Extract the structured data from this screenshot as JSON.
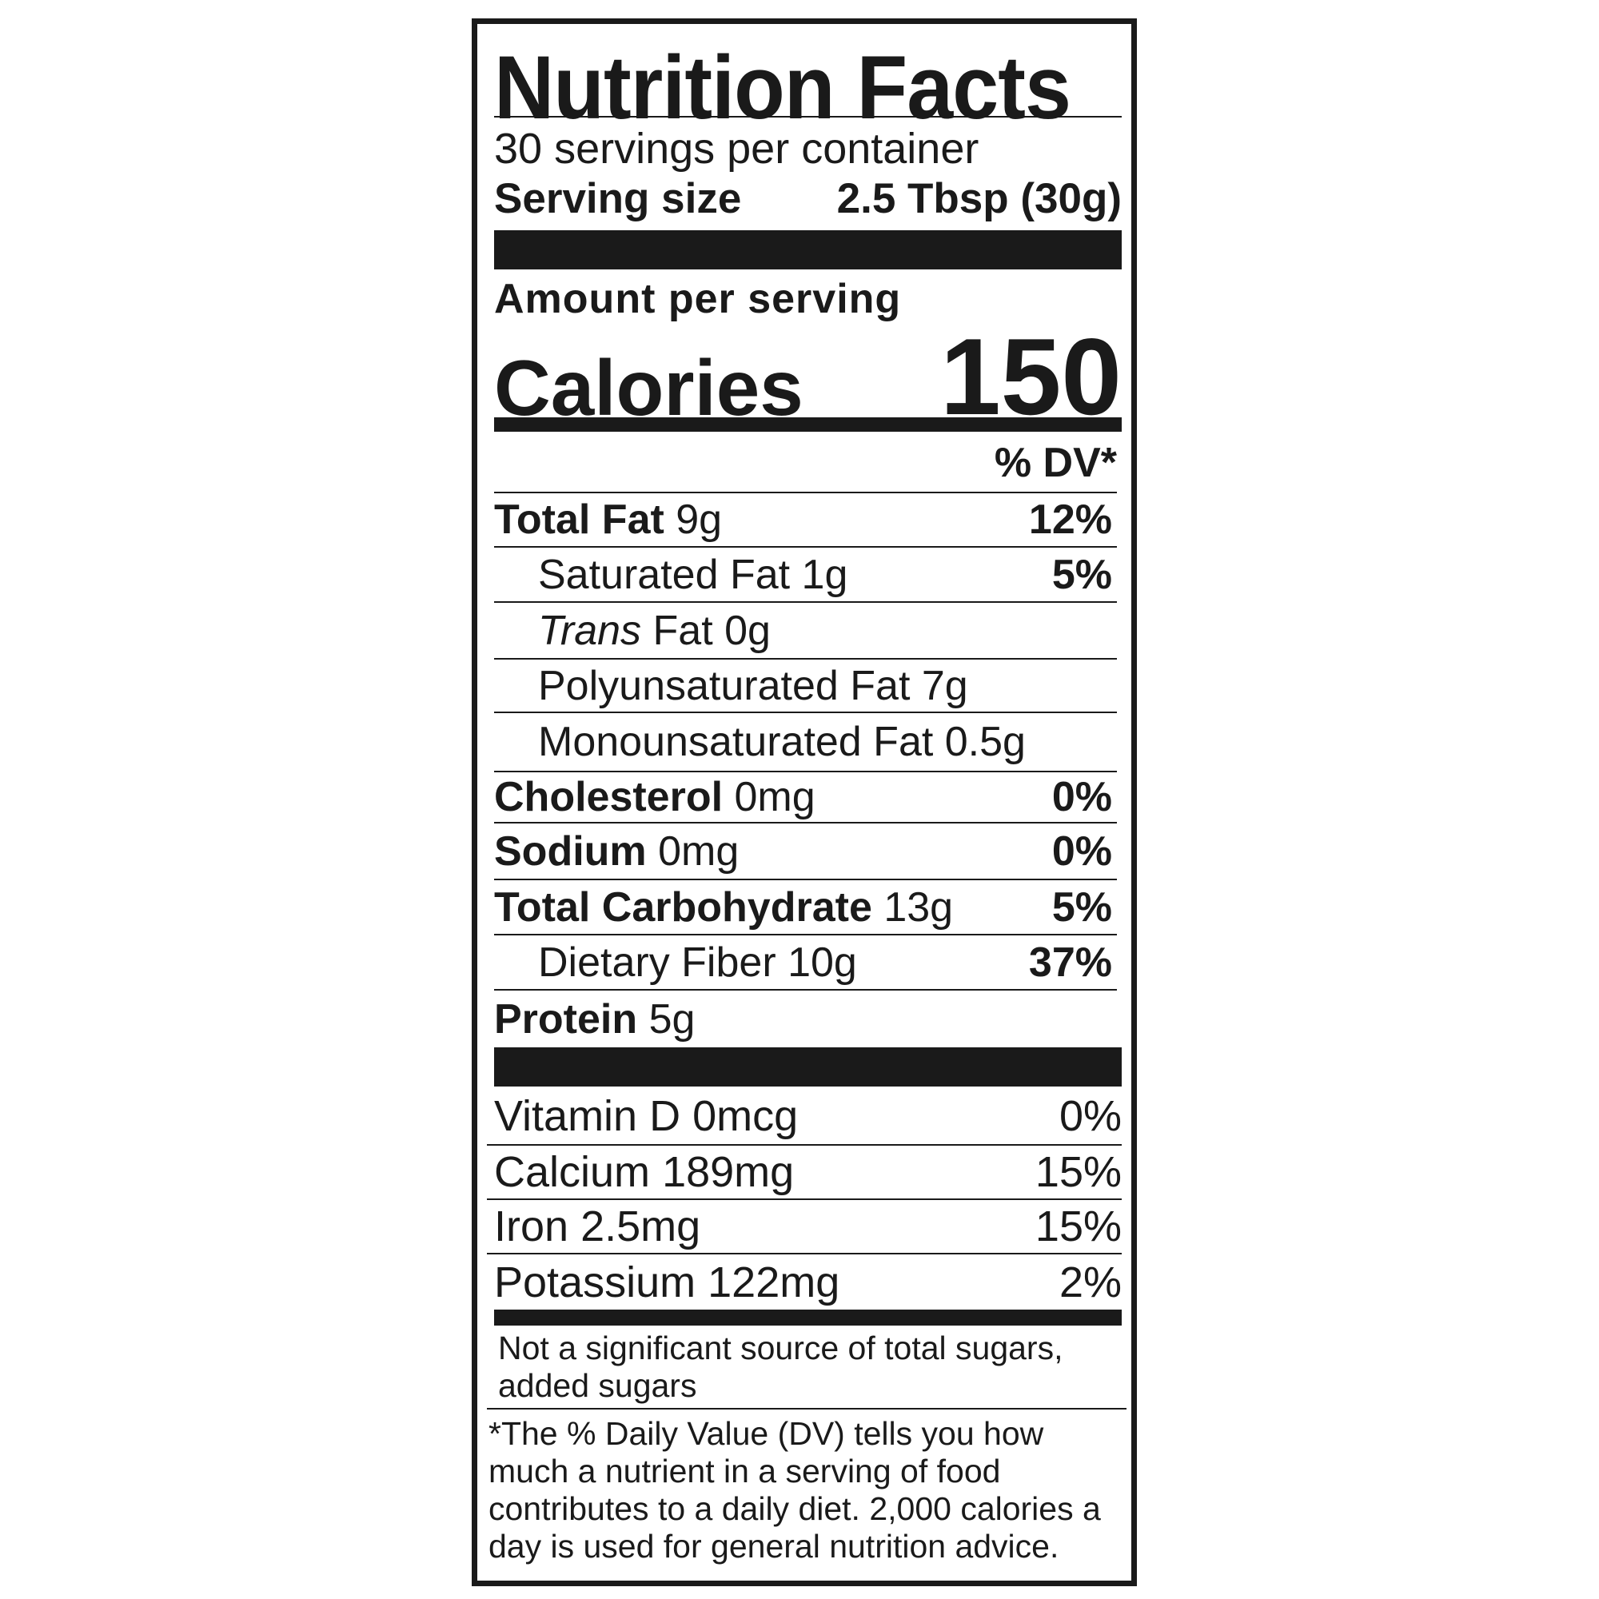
{
  "title": "Nutrition Facts",
  "servings_per_container": "30 servings per container",
  "serving_size": {
    "label": "Serving size",
    "value": "2.5 Tbsp (30g)"
  },
  "amount_per_serving": "Amount per serving",
  "calories": {
    "label": "Calories",
    "value": "150"
  },
  "dv_header": "% DV*",
  "nutrients": [
    {
      "name": "Total Fat",
      "amount": "9g",
      "dv": "12%"
    },
    {
      "name": "Saturated Fat",
      "amount": "1g",
      "dv": "5%"
    },
    {
      "name": "Trans",
      "name_suffix": "Fat",
      "amount": "0g",
      "dv": ""
    },
    {
      "name": "Polyunsaturated Fat",
      "amount": "7g",
      "dv": ""
    },
    {
      "name": "Monounsaturated Fat",
      "amount": "0.5g",
      "dv": ""
    },
    {
      "name": "Cholesterol",
      "amount": "0mg",
      "dv": "0%"
    },
    {
      "name": "Sodium",
      "amount": "0mg",
      "dv": "0%"
    },
    {
      "name": "Total Carbohydrate",
      "amount": "13g",
      "dv": "5%"
    },
    {
      "name": "Dietary Fiber",
      "amount": "10g",
      "dv": "37%"
    },
    {
      "name": "Protein",
      "amount": "5g",
      "dv": ""
    }
  ],
  "vitamins": [
    {
      "name": "Vitamin D",
      "amount": "0mcg",
      "dv": "0%"
    },
    {
      "name": "Calcium",
      "amount": "189mg",
      "dv": "15%"
    },
    {
      "name": "Iron",
      "amount": "2.5mg",
      "dv": "15%"
    },
    {
      "name": "Potassium",
      "amount": "122mg",
      "dv": "2%"
    }
  ],
  "not_significant": "Not a significant source of total sugars, added sugars",
  "footnote": "*The % Daily Value (DV) tells you how much a nutrient in a serving of food contributes to a daily diet. 2,000 calories a day is used for general nutrition advice."
}
